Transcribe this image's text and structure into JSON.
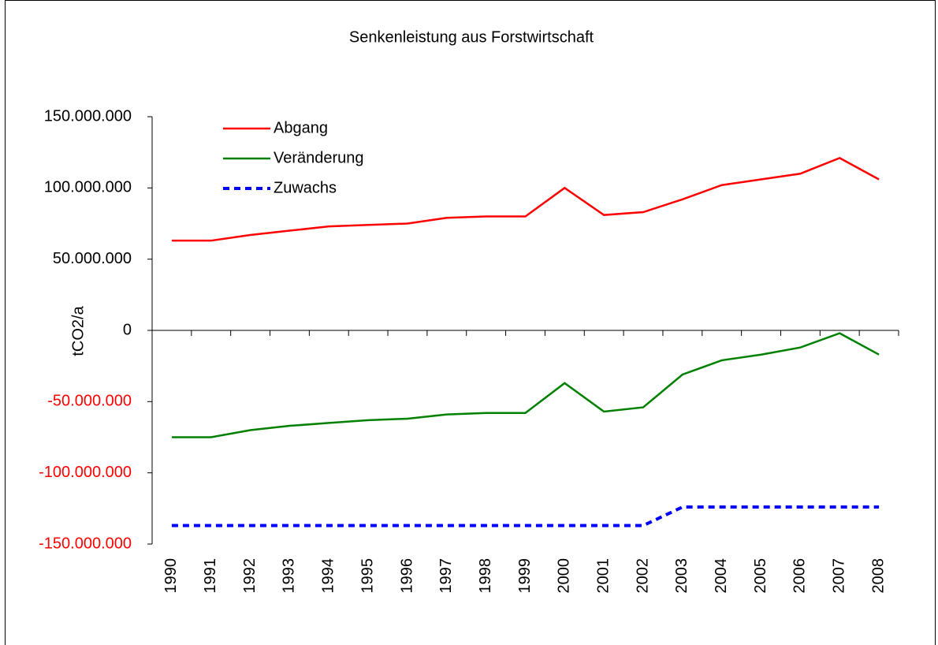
{
  "chart_data": {
    "type": "line",
    "title": "Senkenleistung aus Forstwirtschaft",
    "y_label": "tCO2/a",
    "categories": [
      "1990",
      "1991",
      "1992",
      "1993",
      "1994",
      "1995",
      "1996",
      "1997",
      "1998",
      "1999",
      "2000",
      "2001",
      "2002",
      "2003",
      "2004",
      "2005",
      "2006",
      "2007",
      "2008"
    ],
    "series": [
      {
        "name": "Abgang",
        "color": "#ff0000",
        "dashed": false,
        "values": [
          63000000,
          63000000,
          67000000,
          70000000,
          73000000,
          74000000,
          75000000,
          79000000,
          80000000,
          80000000,
          100000000,
          81000000,
          83000000,
          92000000,
          102000000,
          106000000,
          110000000,
          121000000,
          106000000
        ]
      },
      {
        "name": "Veränderung",
        "color": "#008000",
        "dashed": false,
        "values": [
          -75000000,
          -75000000,
          -70000000,
          -67000000,
          -65000000,
          -63000000,
          -62000000,
          -59000000,
          -58000000,
          -58000000,
          -37000000,
          -57000000,
          -54000000,
          -31000000,
          -21000000,
          -17000000,
          -12000000,
          -2000000,
          -17000000
        ]
      },
      {
        "name": "Zuwachs",
        "color": "#0000ff",
        "dashed": true,
        "values": [
          -137000000,
          -137000000,
          -137000000,
          -137000000,
          -137000000,
          -137000000,
          -137000000,
          -137000000,
          -137000000,
          -137000000,
          -137000000,
          -137000000,
          -137000000,
          -124000000,
          -124000000,
          -124000000,
          -124000000,
          -124000000,
          -124000000
        ]
      }
    ],
    "ylim": [
      -150000000,
      150000000
    ],
    "yticks": [
      {
        "value": -150000000,
        "label": "-150.000.000"
      },
      {
        "value": -100000000,
        "label": "-100.000.000"
      },
      {
        "value": -50000000,
        "label": "-50.000.000"
      },
      0,
      {
        "value": 50000000,
        "label": "50.000.000"
      },
      {
        "value": 100000000,
        "label": "100.000.000"
      },
      {
        "value": 150000000,
        "label": "150.000.000"
      }
    ],
    "negative_tick_color": "#ff0000",
    "grid": false,
    "legend": "top-left"
  }
}
